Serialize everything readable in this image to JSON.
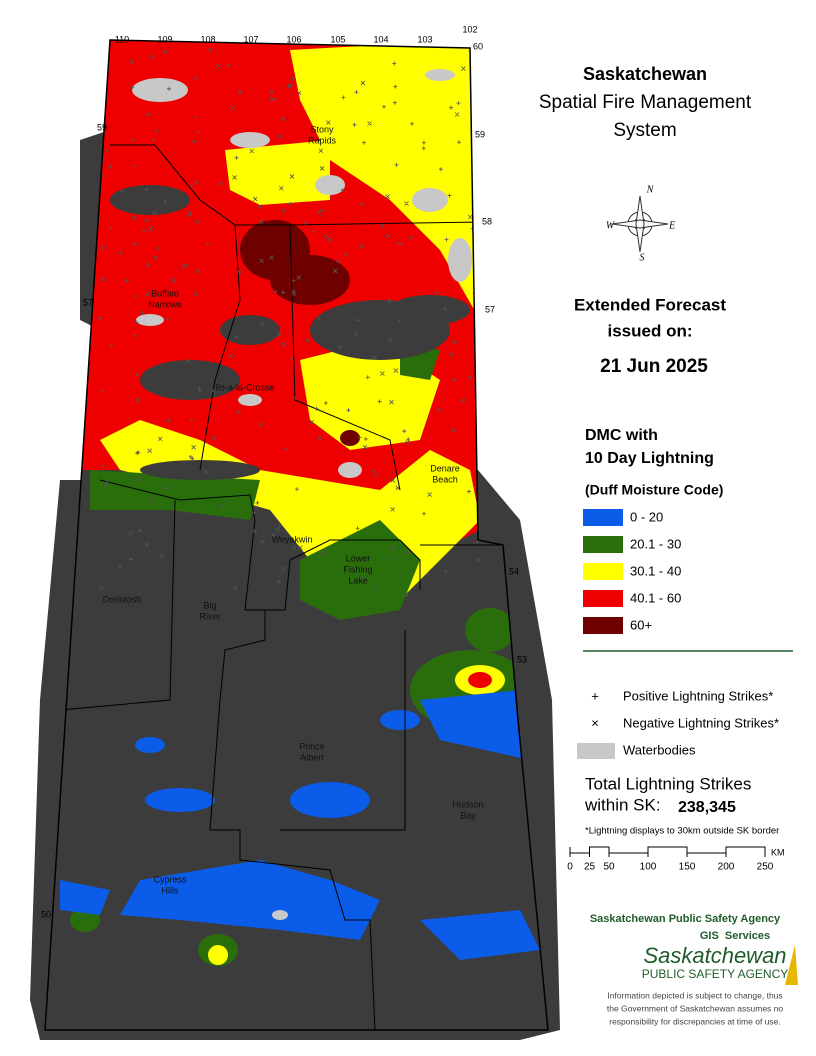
{
  "title": [
    "Saskatchewan",
    "Spatial Fire Management",
    "System"
  ],
  "forecast": {
    "heading": [
      "Extended Forecast",
      "issued on:"
    ],
    "date": "21 Jun 2025"
  },
  "legend": {
    "heading": [
      "DMC with",
      "10 Day Lightning"
    ],
    "subheading": "(Duff Moisture Code)",
    "classes": [
      {
        "label": "0 - 20",
        "color": "#0b5ce8"
      },
      {
        "label": "20.1 - 30",
        "color": "#2a6e0c"
      },
      {
        "label": "30.1 - 40",
        "color": "#ffff00"
      },
      {
        "label": "40.1 - 60",
        "color": "#ee0000"
      },
      {
        "label": "60+",
        "color": "#6e0000"
      }
    ]
  },
  "symbols": [
    {
      "symbol": "+",
      "label": "Positive Lightning Strikes*"
    },
    {
      "symbol": "×",
      "label": "Negative Lightning Strikes*"
    },
    {
      "label": "Waterbodies",
      "color": "#c8c8c8"
    }
  ],
  "total": {
    "label": [
      "Total Lightning Strikes",
      "within SK:"
    ],
    "value": "238,345",
    "note": "*Lightning displays to 30km outside SK border"
  },
  "scale": {
    "ticks": [
      0,
      25,
      50,
      100,
      150,
      200,
      250
    ],
    "unit": "KM"
  },
  "compass": [
    "N",
    "E",
    "S",
    "W"
  ],
  "agency": {
    "name": "Saskatchewan Public Safety Agency",
    "unit": "GIS  Services",
    "logo": [
      "Saskatchewan",
      "PUBLIC SAFETY AGENCY"
    ],
    "disclaimer": [
      "Information depicted is subject to change, thus",
      "the Government of Saskatchewan assumes no",
      "responsibility for discrepancies at time of use."
    ]
  },
  "map": {
    "longitudes": [
      110,
      109,
      108,
      107,
      106,
      105,
      104,
      103,
      102
    ],
    "latitudes": [
      60,
      59,
      59,
      58,
      57,
      57,
      54,
      53,
      50
    ],
    "places": [
      [
        "Stony",
        "Rapids"
      ],
      [
        "Buffalo",
        "Narrows"
      ],
      [
        "Ile-a-la-Crosse"
      ],
      [
        "Denare",
        "Beach"
      ],
      [
        "Weyakwin"
      ],
      [
        "Lower",
        "Fishing",
        "Lake"
      ],
      [
        "Dorintosh"
      ],
      [
        "Big",
        "River"
      ],
      [
        "Prince",
        "Albert"
      ],
      [
        "Hudson",
        "Bay"
      ],
      [
        "Cypress",
        "Hills"
      ]
    ]
  }
}
